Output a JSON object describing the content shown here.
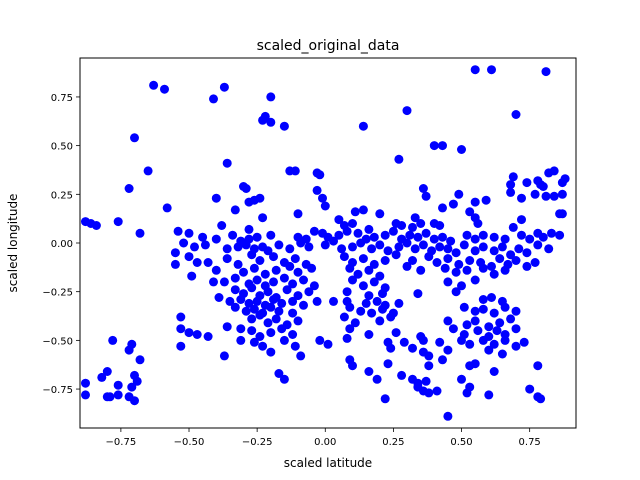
{
  "chart_data": {
    "type": "scatter",
    "title": "scaled_original_data",
    "xlabel": "scaled latitude",
    "ylabel": "scaled longitude",
    "xlim": [
      -0.9,
      0.92
    ],
    "ylim": [
      -0.95,
      0.95
    ],
    "xticks": [
      -0.75,
      -0.5,
      -0.25,
      0.0,
      0.25,
      0.5,
      0.75
    ],
    "xtick_labels": [
      "−0.75",
      "−0.50",
      "−0.25",
      "0.00",
      "0.25",
      "0.50",
      "0.75"
    ],
    "yticks": [
      -0.75,
      -0.5,
      -0.25,
      0.0,
      0.25,
      0.5,
      0.75
    ],
    "ytick_labels": [
      "−0.75",
      "−0.50",
      "−0.25",
      "0.00",
      "0.25",
      "0.50",
      "0.75"
    ],
    "grid": false,
    "marker_color": "#0000ff",
    "points": [
      [
        -0.63,
        0.81
      ],
      [
        -0.59,
        0.79
      ],
      [
        -0.41,
        0.74
      ],
      [
        -0.37,
        0.8
      ],
      [
        -0.2,
        0.75
      ],
      [
        0.55,
        0.89
      ],
      [
        0.61,
        0.89
      ],
      [
        0.81,
        0.88
      ],
      [
        -0.22,
        0.65
      ],
      [
        -0.23,
        0.63
      ],
      [
        -0.2,
        0.62
      ],
      [
        -0.15,
        0.6
      ],
      [
        0.3,
        0.68
      ],
      [
        0.14,
        0.6
      ],
      [
        0.7,
        0.66
      ],
      [
        -0.7,
        0.54
      ],
      [
        -0.36,
        0.41
      ],
      [
        0.27,
        0.43
      ],
      [
        0.4,
        0.5
      ],
      [
        0.43,
        0.5
      ],
      [
        0.5,
        0.48
      ],
      [
        -0.65,
        0.37
      ],
      [
        -0.13,
        0.37
      ],
      [
        -0.11,
        0.37
      ],
      [
        -0.03,
        0.36
      ],
      [
        -0.02,
        0.35
      ],
      [
        0.69,
        0.34
      ],
      [
        0.84,
        0.37
      ],
      [
        0.82,
        0.36
      ],
      [
        0.88,
        0.33
      ],
      [
        0.87,
        0.31
      ],
      [
        -0.72,
        0.28
      ],
      [
        -0.3,
        0.29
      ],
      [
        -0.29,
        0.28
      ],
      [
        0.36,
        0.28
      ],
      [
        0.68,
        0.3
      ],
      [
        0.74,
        0.31
      ],
      [
        0.78,
        0.32
      ],
      [
        0.79,
        0.3
      ],
      [
        0.8,
        0.29
      ],
      [
        -0.4,
        0.23
      ],
      [
        -0.28,
        0.21
      ],
      [
        -0.26,
        0.22
      ],
      [
        -0.24,
        0.23
      ],
      [
        -0.03,
        0.27
      ],
      [
        -0.01,
        0.23
      ],
      [
        0.0,
        0.19
      ],
      [
        0.37,
        0.24
      ],
      [
        0.49,
        0.25
      ],
      [
        0.55,
        0.21
      ],
      [
        0.59,
        0.22
      ],
      [
        0.68,
        0.26
      ],
      [
        0.72,
        0.23
      ],
      [
        0.77,
        0.25
      ],
      [
        0.81,
        0.24
      ],
      [
        0.84,
        0.24
      ],
      [
        0.87,
        0.25
      ],
      [
        -0.58,
        0.18
      ],
      [
        -0.33,
        0.17
      ],
      [
        -0.23,
        0.13
      ],
      [
        -0.1,
        0.15
      ],
      [
        0.05,
        0.12
      ],
      [
        0.11,
        0.16
      ],
      [
        0.14,
        0.17
      ],
      [
        0.2,
        0.15
      ],
      [
        0.33,
        0.13
      ],
      [
        0.43,
        0.18
      ],
      [
        0.47,
        0.2
      ],
      [
        0.53,
        0.16
      ],
      [
        0.55,
        0.13
      ],
      [
        0.72,
        0.12
      ],
      [
        0.86,
        0.15
      ],
      [
        0.87,
        0.15
      ],
      [
        -0.88,
        0.11
      ],
      [
        -0.86,
        0.1
      ],
      [
        -0.84,
        0.09
      ],
      [
        -0.76,
        0.11
      ],
      [
        -0.38,
        0.09
      ],
      [
        -0.28,
        0.07
      ],
      [
        0.07,
        0.09
      ],
      [
        0.1,
        0.1
      ],
      [
        0.16,
        0.07
      ],
      [
        0.26,
        0.1
      ],
      [
        0.28,
        0.09
      ],
      [
        0.32,
        0.08
      ],
      [
        0.35,
        0.1
      ],
      [
        0.4,
        0.1
      ],
      [
        0.42,
        0.09
      ],
      [
        0.56,
        0.1
      ],
      [
        0.69,
        0.08
      ],
      [
        -0.68,
        0.05
      ],
      [
        -0.54,
        0.06
      ],
      [
        -0.5,
        0.05
      ],
      [
        -0.45,
        0.03
      ],
      [
        -0.4,
        0.02
      ],
      [
        -0.34,
        0.04
      ],
      [
        -0.31,
        0.01
      ],
      [
        -0.28,
        0.02
      ],
      [
        -0.25,
        0.03
      ],
      [
        -0.2,
        0.04
      ],
      [
        -0.1,
        0.03
      ],
      [
        -0.07,
        0.02
      ],
      [
        -0.04,
        0.06
      ],
      [
        -0.01,
        0.05
      ],
      [
        0.01,
        0.03
      ],
      [
        0.03,
        0.01
      ],
      [
        0.05,
        0.04
      ],
      [
        0.08,
        0.06
      ],
      [
        0.12,
        0.05
      ],
      [
        0.15,
        0.02
      ],
      [
        0.18,
        0.03
      ],
      [
        0.22,
        0.04
      ],
      [
        0.25,
        0.06
      ],
      [
        0.28,
        0.02
      ],
      [
        0.31,
        0.04
      ],
      [
        0.34,
        0.03
      ],
      [
        0.37,
        0.05
      ],
      [
        0.4,
        0.02
      ],
      [
        0.43,
        0.03
      ],
      [
        0.46,
        0.01
      ],
      [
        0.52,
        0.04
      ],
      [
        0.55,
        0.02
      ],
      [
        0.58,
        0.04
      ],
      [
        0.62,
        0.03
      ],
      [
        0.66,
        0.02
      ],
      [
        0.72,
        0.04
      ],
      [
        0.75,
        0.02
      ],
      [
        0.78,
        0.05
      ],
      [
        0.8,
        0.03
      ],
      [
        0.83,
        0.05
      ],
      [
        0.86,
        0.04
      ],
      [
        -0.52,
        0.0
      ],
      [
        -0.48,
        -0.02
      ],
      [
        -0.44,
        -0.01
      ],
      [
        -0.36,
        -0.03
      ],
      [
        -0.32,
        -0.02
      ],
      [
        -0.29,
        -0.01
      ],
      [
        -0.26,
        -0.03
      ],
      [
        -0.23,
        -0.02
      ],
      [
        -0.21,
        -0.04
      ],
      [
        -0.17,
        -0.01
      ],
      [
        -0.13,
        -0.03
      ],
      [
        -0.09,
        0.0
      ],
      [
        -0.06,
        -0.02
      ],
      [
        0.0,
        -0.01
      ],
      [
        0.06,
        -0.03
      ],
      [
        0.1,
        -0.02
      ],
      [
        0.13,
        0.0
      ],
      [
        0.17,
        -0.03
      ],
      [
        0.2,
        -0.01
      ],
      [
        0.23,
        -0.04
      ],
      [
        0.27,
        -0.02
      ],
      [
        0.3,
        0.0
      ],
      [
        0.33,
        -0.03
      ],
      [
        0.36,
        -0.01
      ],
      [
        0.39,
        -0.04
      ],
      [
        0.42,
        -0.02
      ],
      [
        0.45,
        -0.03
      ],
      [
        0.48,
        -0.05
      ],
      [
        0.51,
        -0.01
      ],
      [
        0.55,
        -0.04
      ],
      [
        0.58,
        -0.02
      ],
      [
        0.62,
        -0.04
      ],
      [
        0.65,
        -0.02
      ],
      [
        0.68,
        -0.06
      ],
      [
        0.71,
        -0.03
      ],
      [
        0.74,
        -0.05
      ],
      [
        0.78,
        -0.01
      ],
      [
        0.82,
        -0.03
      ],
      [
        -0.55,
        -0.05
      ],
      [
        -0.5,
        -0.07
      ],
      [
        -0.47,
        -0.1
      ],
      [
        -0.43,
        -0.1
      ],
      [
        -0.36,
        -0.08
      ],
      [
        -0.32,
        -0.11
      ],
      [
        -0.27,
        -0.06
      ],
      [
        -0.24,
        -0.09
      ],
      [
        -0.19,
        -0.07
      ],
      [
        -0.15,
        -0.1
      ],
      [
        -0.11,
        -0.08
      ],
      [
        -0.07,
        -0.11
      ],
      [
        0.07,
        -0.07
      ],
      [
        0.1,
        -0.1
      ],
      [
        0.14,
        -0.08
      ],
      [
        0.18,
        -0.11
      ],
      [
        0.22,
        -0.09
      ],
      [
        0.26,
        -0.06
      ],
      [
        0.32,
        -0.09
      ],
      [
        0.38,
        -0.07
      ],
      [
        0.41,
        -0.1
      ],
      [
        0.45,
        -0.08
      ],
      [
        0.49,
        -0.11
      ],
      [
        0.53,
        -0.09
      ],
      [
        0.57,
        -0.1
      ],
      [
        0.61,
        -0.12
      ],
      [
        0.64,
        -0.08
      ],
      [
        0.67,
        -0.11
      ],
      [
        0.7,
        -0.09
      ],
      [
        0.74,
        -0.12
      ],
      [
        0.77,
        -0.1
      ],
      [
        -0.55,
        -0.11
      ],
      [
        -0.4,
        -0.14
      ],
      [
        -0.3,
        -0.15
      ],
      [
        -0.26,
        -0.13
      ],
      [
        -0.22,
        -0.16
      ],
      [
        -0.18,
        -0.14
      ],
      [
        -0.13,
        -0.12
      ],
      [
        -0.1,
        -0.15
      ],
      [
        -0.05,
        -0.13
      ],
      [
        0.09,
        -0.13
      ],
      [
        0.12,
        -0.16
      ],
      [
        0.16,
        -0.14
      ],
      [
        0.2,
        -0.17
      ],
      [
        0.3,
        -0.12
      ],
      [
        0.35,
        -0.14
      ],
      [
        0.44,
        -0.13
      ],
      [
        0.48,
        -0.15
      ],
      [
        0.52,
        -0.14
      ],
      [
        0.58,
        -0.13
      ],
      [
        0.62,
        -0.16
      ],
      [
        0.66,
        -0.14
      ],
      [
        -0.49,
        -0.17
      ],
      [
        -0.41,
        -0.2
      ],
      [
        -0.37,
        -0.2
      ],
      [
        -0.33,
        -0.18
      ],
      [
        -0.28,
        -0.21
      ],
      [
        -0.25,
        -0.19
      ],
      [
        -0.22,
        -0.22
      ],
      [
        -0.19,
        -0.2
      ],
      [
        -0.15,
        -0.18
      ],
      [
        -0.12,
        -0.21
      ],
      [
        -0.08,
        -0.19
      ],
      [
        -0.04,
        -0.22
      ],
      [
        0.1,
        -0.19
      ],
      [
        0.14,
        -0.22
      ],
      [
        0.18,
        -0.2
      ],
      [
        0.22,
        -0.23
      ],
      [
        0.45,
        -0.2
      ],
      [
        0.5,
        -0.22
      ],
      [
        0.55,
        -0.19
      ],
      [
        -0.33,
        -0.24
      ],
      [
        -0.3,
        -0.26
      ],
      [
        -0.27,
        -0.23
      ],
      [
        -0.24,
        -0.27
      ],
      [
        -0.21,
        -0.25
      ],
      [
        -0.18,
        -0.28
      ],
      [
        -0.14,
        -0.24
      ],
      [
        -0.1,
        -0.27
      ],
      [
        -0.06,
        -0.25
      ],
      [
        0.08,
        -0.25
      ],
      [
        0.16,
        -0.27
      ],
      [
        0.21,
        -0.26
      ],
      [
        0.34,
        -0.26
      ],
      [
        0.48,
        -0.25
      ],
      [
        -0.39,
        -0.28
      ],
      [
        -0.35,
        -0.3
      ],
      [
        -0.31,
        -0.29
      ],
      [
        -0.28,
        -0.31
      ],
      [
        -0.25,
        -0.3
      ],
      [
        -0.22,
        -0.32
      ],
      [
        -0.19,
        -0.29
      ],
      [
        -0.16,
        -0.31
      ],
      [
        -0.12,
        -0.3
      ],
      [
        -0.08,
        -0.32
      ],
      [
        -0.03,
        -0.3
      ],
      [
        0.03,
        -0.3
      ],
      [
        0.08,
        -0.3
      ],
      [
        0.09,
        -0.33
      ],
      [
        0.15,
        -0.31
      ],
      [
        0.19,
        -0.3
      ],
      [
        0.22,
        -0.32
      ],
      [
        0.27,
        -0.31
      ],
      [
        0.58,
        -0.29
      ],
      [
        0.61,
        -0.28
      ],
      [
        0.65,
        -0.3
      ],
      [
        -0.33,
        -0.33
      ],
      [
        -0.29,
        -0.35
      ],
      [
        -0.26,
        -0.34
      ],
      [
        -0.23,
        -0.36
      ],
      [
        -0.2,
        -0.33
      ],
      [
        -0.17,
        -0.35
      ],
      [
        -0.12,
        -0.36
      ],
      [
        0.13,
        -0.35
      ],
      [
        0.17,
        -0.36
      ],
      [
        0.21,
        -0.34
      ],
      [
        0.25,
        -0.36
      ],
      [
        0.51,
        -0.33
      ],
      [
        0.55,
        -0.35
      ],
      [
        0.58,
        -0.34
      ],
      [
        0.62,
        -0.36
      ],
      [
        0.66,
        -0.33
      ],
      [
        0.7,
        -0.35
      ],
      [
        -0.53,
        -0.38
      ],
      [
        -0.27,
        -0.39
      ],
      [
        -0.24,
        -0.37
      ],
      [
        -0.21,
        -0.41
      ],
      [
        -0.18,
        -0.39
      ],
      [
        -0.14,
        -0.42
      ],
      [
        -0.1,
        -0.4
      ],
      [
        0.07,
        -0.38
      ],
      [
        0.11,
        -0.41
      ],
      [
        0.2,
        -0.4
      ],
      [
        0.24,
        -0.38
      ],
      [
        0.45,
        -0.4
      ],
      [
        0.52,
        -0.42
      ],
      [
        0.55,
        -0.4
      ],
      [
        0.6,
        -0.43
      ],
      [
        0.64,
        -0.41
      ],
      [
        0.68,
        -0.39
      ],
      [
        -0.53,
        -0.44
      ],
      [
        -0.5,
        -0.46
      ],
      [
        -0.47,
        -0.47
      ],
      [
        -0.36,
        -0.43
      ],
      [
        -0.31,
        -0.44
      ],
      [
        -0.27,
        -0.45
      ],
      [
        -0.24,
        -0.48
      ],
      [
        -0.2,
        -0.46
      ],
      [
        -0.16,
        -0.44
      ],
      [
        -0.12,
        -0.47
      ],
      [
        0.09,
        -0.44
      ],
      [
        0.16,
        -0.47
      ],
      [
        0.26,
        -0.46
      ],
      [
        0.35,
        -0.48
      ],
      [
        0.47,
        -0.44
      ],
      [
        0.51,
        -0.47
      ],
      [
        0.56,
        -0.45
      ],
      [
        0.6,
        -0.48
      ],
      [
        0.63,
        -0.45
      ],
      [
        0.66,
        -0.47
      ],
      [
        0.7,
        -0.44
      ],
      [
        -0.78,
        -0.5
      ],
      [
        -0.43,
        -0.48
      ],
      [
        -0.31,
        -0.5
      ],
      [
        -0.26,
        -0.51
      ],
      [
        -0.23,
        -0.53
      ],
      [
        -0.15,
        -0.5
      ],
      [
        -0.11,
        -0.53
      ],
      [
        -0.02,
        -0.5
      ],
      [
        0.01,
        -0.52
      ],
      [
        0.08,
        -0.49
      ],
      [
        0.23,
        -0.51
      ],
      [
        0.29,
        -0.51
      ],
      [
        0.36,
        -0.5
      ],
      [
        0.42,
        -0.51
      ],
      [
        0.5,
        -0.5
      ],
      [
        0.53,
        -0.52
      ],
      [
        0.58,
        -0.5
      ],
      [
        0.62,
        -0.52
      ],
      [
        0.66,
        -0.5
      ],
      [
        0.7,
        -0.53
      ],
      [
        0.73,
        -0.51
      ],
      [
        -0.71,
        -0.52
      ],
      [
        -0.72,
        -0.55
      ],
      [
        -0.53,
        -0.53
      ],
      [
        -0.37,
        -0.58
      ],
      [
        -0.2,
        -0.56
      ],
      [
        -0.09,
        -0.58
      ],
      [
        0.24,
        -0.54
      ],
      [
        0.32,
        -0.54
      ],
      [
        0.36,
        -0.56
      ],
      [
        0.38,
        -0.58
      ],
      [
        0.45,
        -0.55
      ],
      [
        0.43,
        -0.6
      ],
      [
        0.6,
        -0.55
      ],
      [
        0.65,
        -0.57
      ],
      [
        -0.68,
        -0.6
      ],
      [
        -0.8,
        -0.66
      ],
      [
        -0.82,
        -0.69
      ],
      [
        -0.7,
        -0.68
      ],
      [
        -0.17,
        -0.67
      ],
      [
        -0.15,
        -0.7
      ],
      [
        0.09,
        -0.6
      ],
      [
        0.1,
        -0.63
      ],
      [
        0.16,
        -0.66
      ],
      [
        0.23,
        -0.62
      ],
      [
        0.38,
        -0.63
      ],
      [
        0.53,
        -0.63
      ],
      [
        0.55,
        -0.62
      ],
      [
        0.62,
        -0.66
      ],
      [
        0.78,
        -0.63
      ],
      [
        -0.88,
        -0.72
      ],
      [
        -0.76,
        -0.73
      ],
      [
        -0.71,
        -0.74
      ],
      [
        -0.69,
        -0.71
      ],
      [
        0.19,
        -0.7
      ],
      [
        0.28,
        -0.68
      ],
      [
        0.32,
        -0.7
      ],
      [
        0.34,
        -0.72
      ],
      [
        0.37,
        -0.71
      ],
      [
        0.5,
        -0.7
      ],
      [
        0.38,
        -0.77
      ],
      [
        0.41,
        -0.76
      ],
      [
        0.52,
        -0.77
      ],
      [
        0.53,
        -0.74
      ],
      [
        0.75,
        -0.75
      ],
      [
        -0.88,
        -0.78
      ],
      [
        -0.8,
        -0.79
      ],
      [
        -0.79,
        -0.79
      ],
      [
        -0.76,
        -0.78
      ],
      [
        -0.72,
        -0.79
      ],
      [
        -0.7,
        -0.81
      ],
      [
        0.22,
        -0.8
      ],
      [
        0.45,
        -0.89
      ],
      [
        0.34,
        -0.74
      ],
      [
        0.6,
        -0.78
      ],
      [
        0.78,
        -0.79
      ],
      [
        0.79,
        -0.8
      ],
      [
        0.36,
        -0.76
      ]
    ]
  }
}
